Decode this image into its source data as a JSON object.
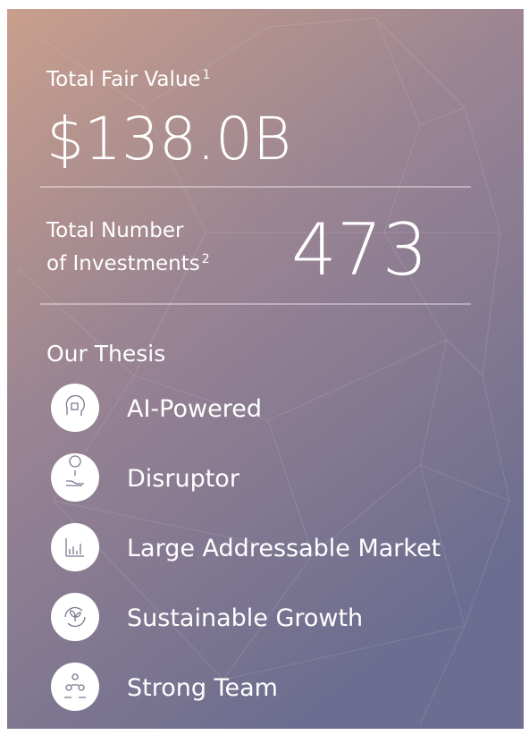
{
  "fair_value": {
    "label": "Total Fair Value",
    "note": "1",
    "value": "$138.0B"
  },
  "investments": {
    "label_lines": [
      "Total Number",
      "of Investments"
    ],
    "note": "2",
    "value": "473"
  },
  "thesis": {
    "title": "Our Thesis",
    "items": [
      "AI-Powered",
      "Disruptor",
      "Large Addressable Market",
      "Sustainable Growth",
      "Strong Team"
    ]
  }
}
